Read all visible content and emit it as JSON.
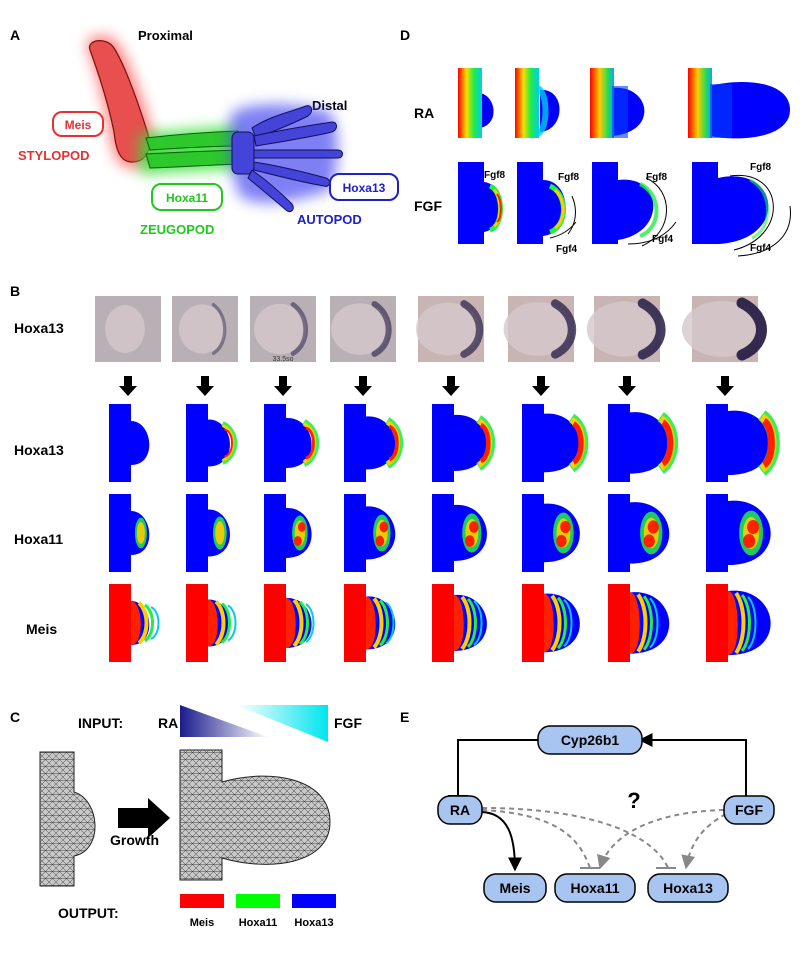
{
  "panel_a": {
    "letter": "A",
    "proximal": "Proximal",
    "distal": "Distal",
    "meis_box": "Meis",
    "stylopod": "STYLOPOD",
    "hoxa11_box": "Hoxa11",
    "zeugopod": "ZEUGOPOD",
    "hoxa13_box": "Hoxa13",
    "autopod": "AUTOPOD",
    "colors": {
      "red": "#e8262a",
      "green": "#21c81e",
      "blue": "#2020c8"
    }
  },
  "panel_d": {
    "letter": "D",
    "row_ra": "RA",
    "row_fgf": "FGF",
    "fgf8": "Fgf8",
    "fgf4": "Fgf4"
  },
  "panel_b": {
    "letter": "B",
    "row_photo": "Hoxa13",
    "row_hoxa13": "Hoxa13",
    "row_hoxa11": "Hoxa11",
    "row_meis": "Meis",
    "photo_caption": "33.5so"
  },
  "panel_c": {
    "letter": "C",
    "input_label": "INPUT:",
    "ra": "RA",
    "fgf": "FGF",
    "growth": "Growth",
    "output_label": "OUTPUT:",
    "outputs": [
      {
        "label": "Meis",
        "color": "#ff0000"
      },
      {
        "label": "Hoxa11",
        "color": "#00ff00"
      },
      {
        "label": "Hoxa13",
        "color": "#0000ff"
      }
    ]
  },
  "panel_e": {
    "letter": "E",
    "cyp": "Cyp26b1",
    "ra": "RA",
    "fgf": "FGF",
    "meis": "Meis",
    "hoxa11": "Hoxa11",
    "hoxa13": "Hoxa13",
    "question": "?",
    "node_color": "#a8c4f0"
  }
}
